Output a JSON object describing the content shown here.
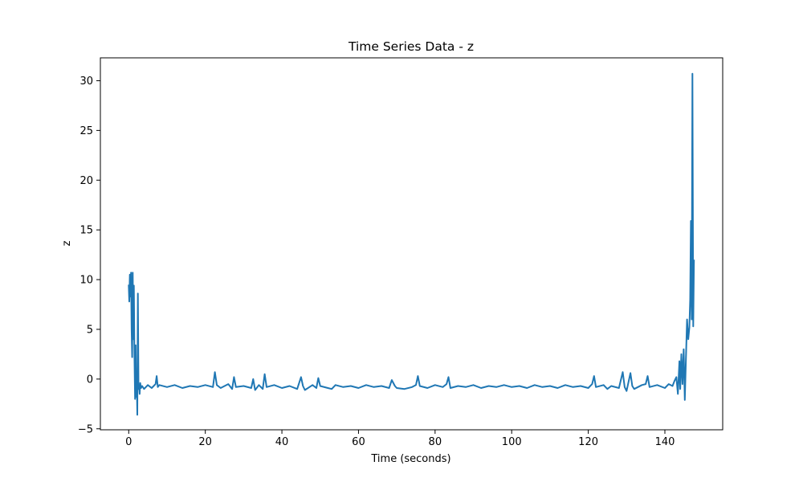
{
  "chart_data": {
    "type": "line",
    "title": "Time Series Data - z",
    "xlabel": "Time (seconds)",
    "ylabel": "z",
    "xlim": [
      -7.4,
      155.1
    ],
    "ylim": [
      -5.1,
      32.3
    ],
    "xticks": [
      0,
      20,
      40,
      60,
      80,
      100,
      120,
      140
    ],
    "yticks": [
      -5,
      0,
      5,
      10,
      15,
      20,
      25,
      30
    ],
    "grid": false,
    "series_color": "#1f77b4",
    "series": [
      {
        "x": [
          0.0,
          0.15,
          0.3,
          0.45,
          0.6,
          0.75,
          0.9,
          1.05,
          1.2,
          1.35,
          1.5,
          1.65,
          1.8,
          1.95,
          2.1,
          2.25,
          2.4,
          2.55,
          2.7,
          2.85,
          3.0,
          3.2,
          3.5,
          4.0,
          5.0,
          6.0,
          7.0,
          7.3,
          7.6,
          8.0,
          10.0,
          12.0,
          14.0,
          16.0,
          18.0,
          20.0,
          22.0,
          22.5,
          23.0,
          24.0,
          26.0,
          27.0,
          27.5,
          28.0,
          30.0,
          32.0,
          32.5,
          33.0,
          34.0,
          35.0,
          35.5,
          36.0,
          38.0,
          40.0,
          42.0,
          44.0,
          45.0,
          45.5,
          46.0,
          48.0,
          49.0,
          49.5,
          50.0,
          52.0,
          53.0,
          54.0,
          56.0,
          58.0,
          60.0,
          62.0,
          64.0,
          66.0,
          68.0,
          68.7,
          69.5,
          70.0,
          72.0,
          74.0,
          75.0,
          75.5,
          76.0,
          78.0,
          80.0,
          82.0,
          83.0,
          83.5,
          84.0,
          86.0,
          88.0,
          90.0,
          92.0,
          94.0,
          96.0,
          98.0,
          100.0,
          102.0,
          104.0,
          106.0,
          108.0,
          110.0,
          112.0,
          114.0,
          116.0,
          118.0,
          120.0,
          121.0,
          121.5,
          122.0,
          124.0,
          125.0,
          126.0,
          128.0,
          129.0,
          129.5,
          130.0,
          131.0,
          131.5,
          132.0,
          134.0,
          135.0,
          135.5,
          136.0,
          138.0,
          140.0,
          141.0,
          142.0,
          142.5,
          143.0,
          143.4,
          143.8,
          144.0,
          144.3,
          144.6,
          144.9,
          145.2,
          145.5,
          145.8,
          146.1,
          146.4,
          146.6,
          146.8,
          147.0,
          147.2,
          147.4,
          147.6
        ],
        "y": [
          9.5,
          7.8,
          10.5,
          8.3,
          10.7,
          5.0,
          2.2,
          10.7,
          4.0,
          9.4,
          2.5,
          -2.0,
          3.4,
          -1.8,
          0.0,
          -3.6,
          8.6,
          -1.0,
          -0.6,
          -1.5,
          -0.4,
          -0.9,
          -0.7,
          -1.0,
          -0.6,
          -0.9,
          -0.5,
          0.3,
          -0.8,
          -0.6,
          -0.8,
          -0.6,
          -0.9,
          -0.7,
          -0.8,
          -0.6,
          -0.8,
          0.7,
          -0.6,
          -0.9,
          -0.5,
          -1.0,
          0.2,
          -0.8,
          -0.7,
          -0.9,
          0.0,
          -1.1,
          -0.6,
          -1.0,
          0.5,
          -0.8,
          -0.6,
          -0.9,
          -0.7,
          -1.0,
          0.2,
          -0.7,
          -1.1,
          -0.6,
          -0.9,
          0.1,
          -0.7,
          -0.9,
          -1.0,
          -0.6,
          -0.8,
          -0.7,
          -0.9,
          -0.6,
          -0.8,
          -0.7,
          -0.9,
          -0.1,
          -0.7,
          -0.9,
          -1.0,
          -0.8,
          -0.6,
          0.3,
          -0.7,
          -0.9,
          -0.6,
          -0.8,
          -0.5,
          0.2,
          -0.9,
          -0.7,
          -0.8,
          -0.6,
          -0.9,
          -0.7,
          -0.8,
          -0.6,
          -0.8,
          -0.7,
          -0.9,
          -0.6,
          -0.8,
          -0.7,
          -0.9,
          -0.6,
          -0.8,
          -0.7,
          -0.9,
          -0.5,
          0.3,
          -0.8,
          -0.6,
          -1.0,
          -0.7,
          -0.9,
          0.7,
          -0.8,
          -1.2,
          0.6,
          -0.7,
          -1.0,
          -0.6,
          -0.5,
          0.3,
          -0.8,
          -0.6,
          -0.9,
          -0.5,
          -0.7,
          -0.2,
          0.2,
          -1.5,
          1.8,
          -1.0,
          2.5,
          -0.5,
          3.0,
          -2.1,
          2.0,
          6.0,
          4.0,
          5.2,
          8.0,
          15.9,
          6.0,
          30.7,
          5.3,
          12.0
        ]
      }
    ]
  }
}
